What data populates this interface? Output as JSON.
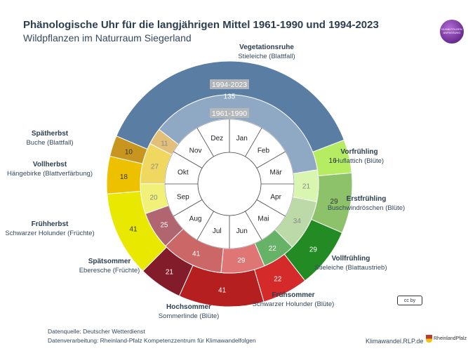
{
  "header": {
    "title": "Phänologische Uhr für die langjährigen Mittel 1961-1990 und 1994-2023",
    "subtitle": "Wildpflanzen im Naturraum Siegerland"
  },
  "footer": {
    "source": "Datenquelle: Deutscher Wetterdienst",
    "processing": "Datenverarbeitung: Rheinland-Pfalz Kompetenzzentrum für Klimawandelfolgen",
    "site": "Klimawandel.RLP.de",
    "rlp_logo_text": "RheinlandPfalz",
    "cc_badge": "cc by"
  },
  "logo": {
    "text": "KLIMA FOLGEN ANPASSUNG"
  },
  "chart_data": {
    "type": "pie",
    "title": "Phänologische Uhr für die langjährigen Mittel 1961-1990 und 1994-2023",
    "ring_labels": {
      "outer": "1994-2023",
      "inner": "1961-1990"
    },
    "phases": [
      {
        "name": "Vegetationsruhe",
        "indicator": "Stieleiche (Blattfall)",
        "color": "#5a7ea3",
        "inner_color": "#8fa8c4"
      },
      {
        "name": "Vorfrühling",
        "indicator": "Huflattich (Blüte)",
        "color": "#b5ec62",
        "inner_color": "#d8f6b0"
      },
      {
        "name": "Erstfrühling",
        "indicator": "Buschwindröschen (Blüte)",
        "color": "#8dc26b",
        "inner_color": "#bcd9a8"
      },
      {
        "name": "Vollfrühling",
        "indicator": "Stieleiche (Blattaustrieb)",
        "color": "#238b23",
        "inner_color": "#66b266"
      },
      {
        "name": "Frühsommer",
        "indicator": "Schwarzer Holunder (Blüte)",
        "color": "#d42a2a",
        "inner_color": "#e07575"
      },
      {
        "name": "Hochsommer",
        "indicator": "Sommerlinde (Blüte)",
        "color": "#b51f1f",
        "inner_color": "#cc6767"
      },
      {
        "name": "Spätsommer",
        "indicator": "Eberesche (Früchte)",
        "color": "#821c2a",
        "inner_color": "#b06570"
      },
      {
        "name": "Frühherbst",
        "indicator": "Schwarzer Holunder (Früchte)",
        "color": "#e8e800",
        "inner_color": "#f1f17a"
      },
      {
        "name": "Vollherbst",
        "indicator": "Hängebirke (Blattverfärbung)",
        "color": "#eec100",
        "inner_color": "#f0d860"
      },
      {
        "name": "Spätherbst",
        "indicator": "Buche (Blattfall)",
        "color": "#c8961e",
        "inner_color": "#e2c07a"
      }
    ],
    "series": [
      {
        "name": "1994-2023",
        "values": [
          138,
          16,
          29,
          29,
          22,
          41,
          21,
          41,
          18,
          10
        ]
      },
      {
        "name": "1961-1990",
        "values": [
          135,
          21,
          34,
          22,
          29,
          41,
          25,
          20,
          27,
          11
        ]
      }
    ],
    "months": [
      "Jan",
      "Feb",
      "Mär",
      "Apr",
      "Mai",
      "Jun",
      "Jul",
      "Aug",
      "Sep",
      "Okt",
      "Nov",
      "Dez"
    ],
    "start_offset_days": 11.4
  }
}
